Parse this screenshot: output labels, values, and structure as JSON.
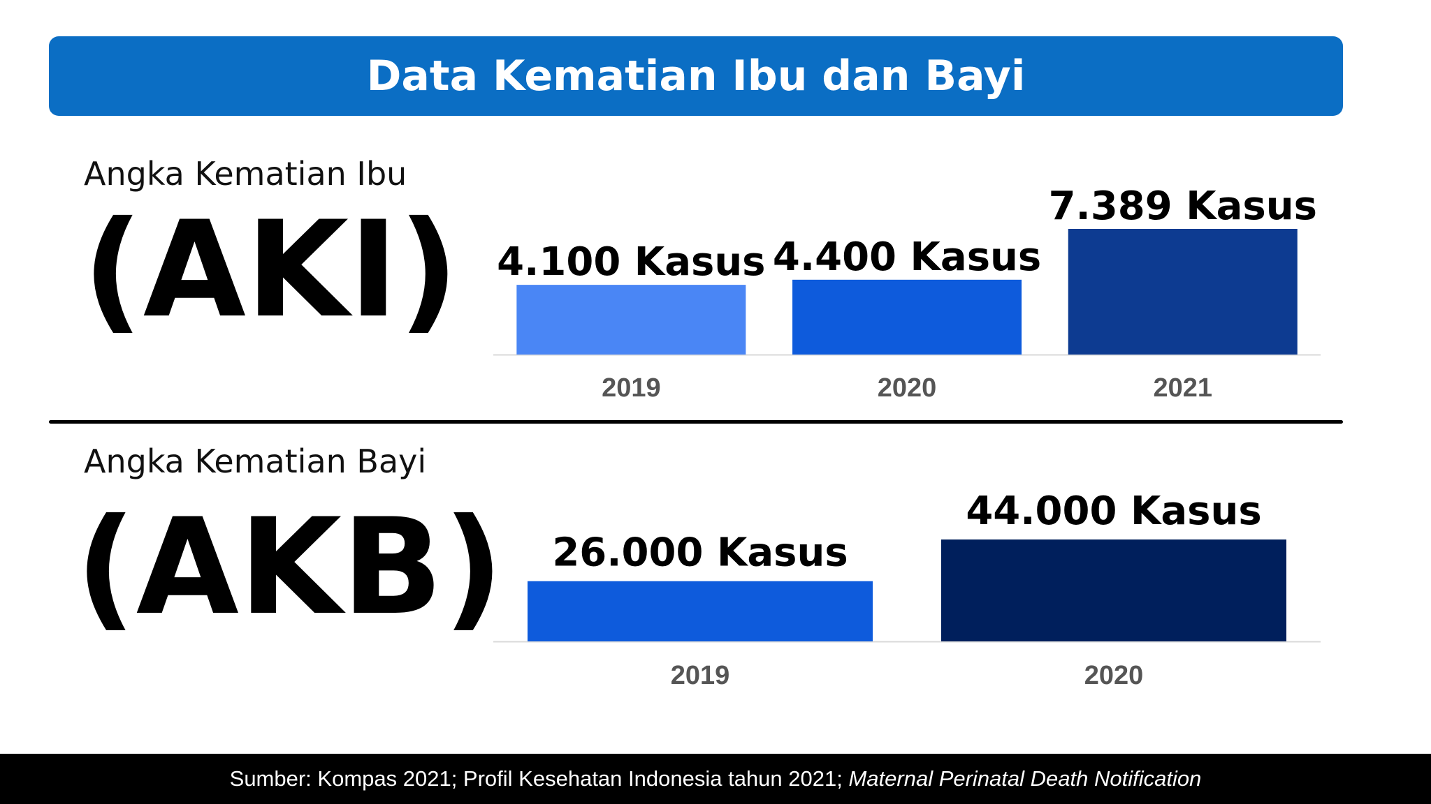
{
  "title": "Data Kematian Ibu dan Bayi",
  "sections": {
    "aki": {
      "label": "Angka Kematian Ibu",
      "abbr": "(AKI)"
    },
    "akb": {
      "label": "Angka Kematian Bayi",
      "abbr": "(AKB)"
    }
  },
  "chart_data": [
    {
      "type": "bar",
      "title": "",
      "xlabel": "",
      "ylabel": "",
      "categories": [
        "2019",
        "2020",
        "2021"
      ],
      "values": [
        4100,
        4400,
        7389
      ],
      "data_labels": [
        "4.100 Kasus",
        "4.400 Kasus",
        "7.389 Kasus"
      ],
      "colors": [
        "#4a86f5",
        "#0e5bdc",
        "#0d3b91"
      ],
      "ylim": [
        0,
        7389
      ],
      "grid": false
    },
    {
      "type": "bar",
      "title": "",
      "xlabel": "",
      "ylabel": "",
      "categories": [
        "2019",
        "2020"
      ],
      "values": [
        26000,
        44000
      ],
      "data_labels": [
        "26.000 Kasus",
        "44.000 Kasus"
      ],
      "colors": [
        "#0e5bdc",
        "#001f5c"
      ],
      "ylim": [
        0,
        44000
      ],
      "grid": false
    }
  ],
  "footer": {
    "source_prefix": "Sumber: Kompas 2021; Profil Kesehatan Indonesia tahun 2021; ",
    "source_italic": "Maternal Perinatal Death Notification"
  },
  "colors": {
    "title_bar": "#0b6ec4",
    "footer_bg": "#000000"
  }
}
